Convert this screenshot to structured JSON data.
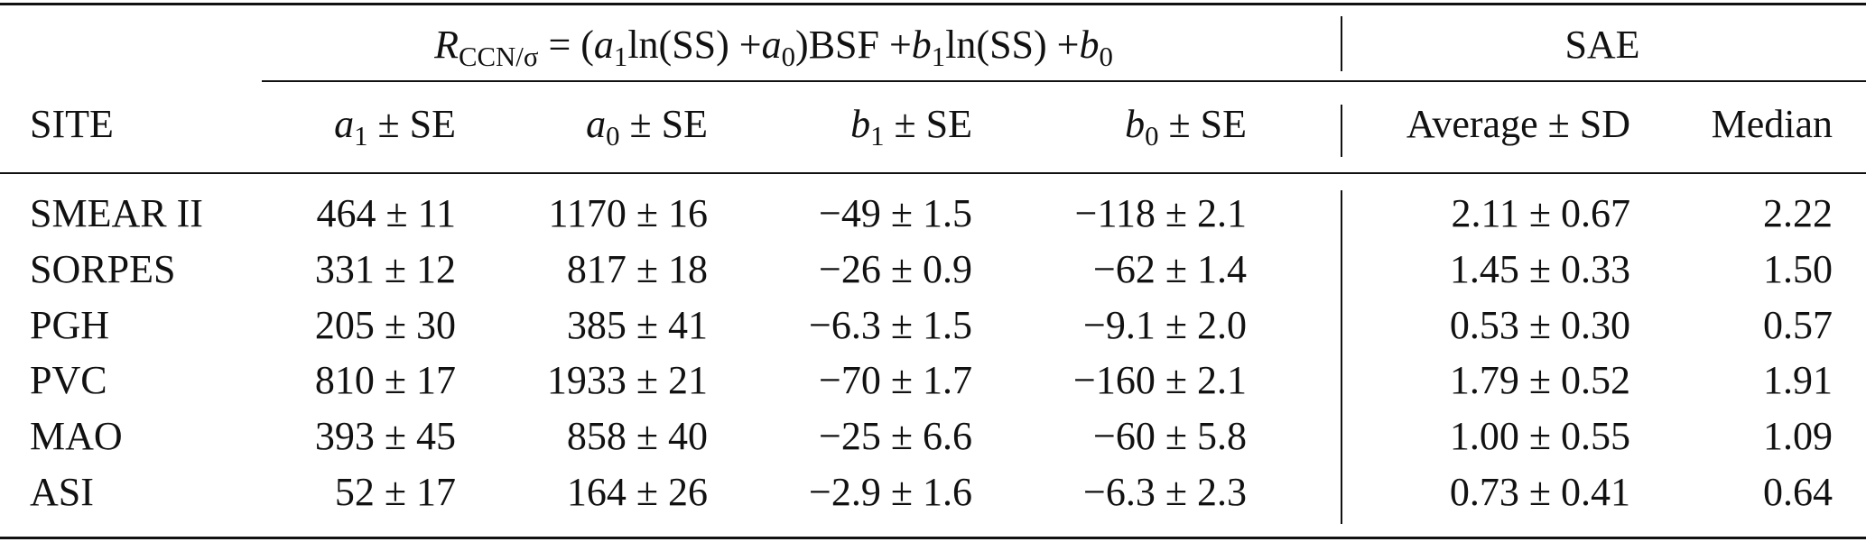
{
  "table": {
    "group_headers": {
      "formula": [
        {
          "var": "R",
          "sub": "CCN/σ"
        },
        {
          "text": " = ("
        },
        {
          "var": "a",
          "sub": "1"
        },
        {
          "text": "ln(SS) +"
        },
        {
          "var": "a",
          "sub": "0"
        },
        {
          "text": ")BSF +"
        },
        {
          "var": "b",
          "sub": "1"
        },
        {
          "text": "ln(SS) +"
        },
        {
          "var": "b",
          "sub": "0"
        }
      ],
      "sae": "SAE"
    },
    "columns": [
      {
        "text": "SITE"
      },
      {
        "var": "a",
        "sub": "1",
        "text": " ± SE"
      },
      {
        "var": "a",
        "sub": "0",
        "text": " ± SE"
      },
      {
        "var": "b",
        "sub": "1",
        "text": " ± SE"
      },
      {
        "var": "b",
        "sub": "0",
        "text": " ± SE"
      },
      {
        "text": "Average ± SD"
      },
      {
        "text": "Median"
      }
    ],
    "rows": [
      [
        "SMEAR II",
        "464 ± 11",
        "1170 ± 16",
        "−49 ± 1.5",
        "−118 ± 2.1",
        "2.11 ± 0.67",
        "2.22"
      ],
      [
        "SORPES",
        "331 ± 12",
        "817 ± 18",
        "−26 ± 0.9",
        "−62 ± 1.4",
        "1.45 ± 0.33",
        "1.50"
      ],
      [
        "PGH",
        "205 ± 30",
        "385 ± 41",
        "−6.3 ± 1.5",
        "−9.1 ± 2.0",
        "0.53 ± 0.30",
        "0.57"
      ],
      [
        "PVC",
        "810 ± 17",
        "1933 ± 21",
        "−70 ± 1.7",
        "−160 ± 2.1",
        "1.79 ± 0.52",
        "1.91"
      ],
      [
        "MAO",
        "393 ± 45",
        "858 ± 40",
        "−25 ± 6.6",
        "−60 ± 5.8",
        "1.00 ± 0.55",
        "1.09"
      ],
      [
        "ASI",
        "52 ± 17",
        "164 ± 26",
        "−2.9 ± 1.6",
        "−6.3 ± 2.3",
        "0.73 ± 0.41",
        "0.64"
      ]
    ]
  }
}
